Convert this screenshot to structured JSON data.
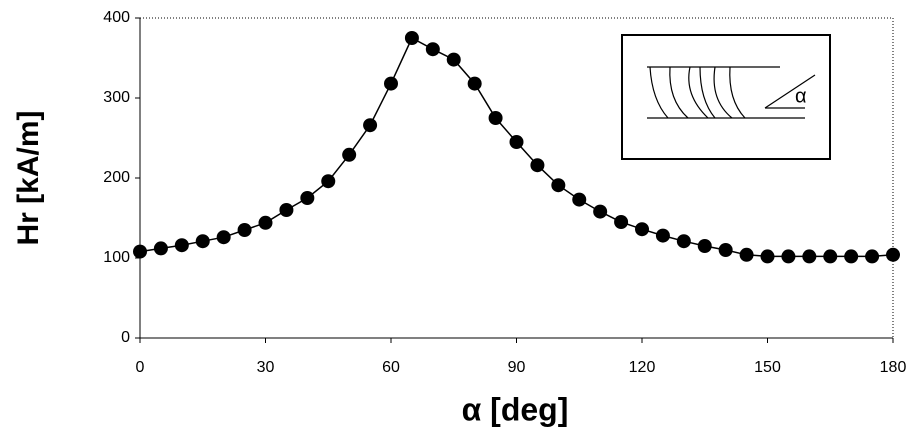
{
  "chart_data": {
    "type": "line",
    "x_label": "α [deg]",
    "y_label": "Hr [kA/m]",
    "inset_label": "α",
    "x": [
      0,
      5,
      10,
      15,
      20,
      25,
      30,
      35,
      40,
      45,
      50,
      55,
      60,
      65,
      70,
      75,
      80,
      85,
      90,
      95,
      100,
      105,
      110,
      115,
      120,
      125,
      130,
      135,
      140,
      145,
      150,
      155,
      160,
      165,
      170,
      175,
      180
    ],
    "series": [
      {
        "color": "#000000",
        "values": [
          108,
          112,
          116,
          121,
          126,
          135,
          144,
          160,
          175,
          196,
          229,
          266,
          318,
          375,
          361,
          348,
          318,
          275,
          245,
          216,
          191,
          173,
          158,
          145,
          136,
          128,
          121,
          115,
          110,
          104,
          102,
          102,
          102,
          102,
          102,
          102,
          104
        ]
      }
    ],
    "xlim": [
      0,
      180
    ],
    "xticks": [
      0,
      30,
      60,
      90,
      120,
      150,
      180
    ],
    "ylim": [
      0,
      400
    ],
    "yticks": [
      0,
      100,
      200,
      300,
      400
    ],
    "grid": false
  }
}
